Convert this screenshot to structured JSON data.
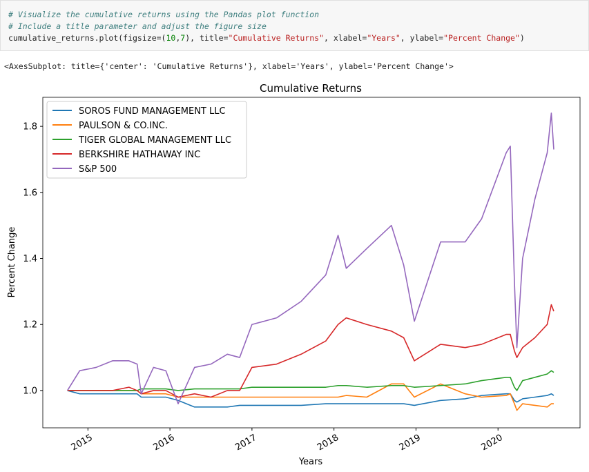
{
  "code_cell": {
    "line1": "# Visualize the cumulative returns using the Pandas plot function",
    "line2": "# Include a title parameter and adjust the figure size",
    "line3": [
      "cumulative_returns.plot(figsize=(",
      "10",
      ",",
      "7",
      "), title=",
      "\"Cumulative Returns\"",
      ", xlabel=",
      "\"Years\"",
      ", ylabel=",
      "\"Percent Change\"",
      ")"
    ]
  },
  "output_text": "<AxesSubplot: title={'center': 'Cumulative Returns'}, xlabel='Years', ylabel='Percent Change'>",
  "chart_data": {
    "type": "line",
    "title": "Cumulative Returns",
    "x_label": "Years",
    "y_label": "Percent Change",
    "x": [
      2014.75,
      2014.9,
      2015.1,
      2015.3,
      2015.5,
      2015.6,
      2015.65,
      2015.8,
      2015.95,
      2016.1,
      2016.3,
      2016.5,
      2016.7,
      2016.85,
      2017.0,
      2017.3,
      2017.6,
      2017.9,
      2018.05,
      2018.15,
      2018.4,
      2018.7,
      2018.85,
      2018.98,
      2019.3,
      2019.6,
      2019.8,
      2020.1,
      2020.15,
      2020.2,
      2020.23,
      2020.3,
      2020.45,
      2020.6,
      2020.65,
      2020.68
    ],
    "series": [
      {
        "name": "SOROS FUND MANAGEMENT LLC",
        "color": "#1f77b4",
        "values": [
          1.0,
          0.99,
          0.99,
          0.99,
          0.99,
          0.99,
          0.98,
          0.98,
          0.98,
          0.97,
          0.95,
          0.95,
          0.95,
          0.955,
          0.955,
          0.955,
          0.955,
          0.96,
          0.96,
          0.96,
          0.96,
          0.96,
          0.96,
          0.955,
          0.97,
          0.975,
          0.985,
          0.99,
          0.99,
          0.97,
          0.965,
          0.975,
          0.98,
          0.985,
          0.99,
          0.985
        ]
      },
      {
        "name": "PAULSON & CO.INC.",
        "color": "#ff7f0e",
        "values": [
          1.0,
          1.0,
          1.0,
          1.0,
          1.0,
          1.0,
          0.99,
          0.99,
          0.99,
          0.98,
          0.98,
          0.98,
          0.98,
          0.98,
          0.98,
          0.98,
          0.98,
          0.98,
          0.98,
          0.985,
          0.98,
          1.02,
          1.02,
          0.98,
          1.02,
          0.99,
          0.98,
          0.985,
          0.99,
          0.96,
          0.94,
          0.96,
          0.955,
          0.95,
          0.96,
          0.96
        ]
      },
      {
        "name": "TIGER GLOBAL MANAGEMENT LLC",
        "color": "#2ca02c",
        "values": [
          1.0,
          1.0,
          1.0,
          1.0,
          1.0,
          1.0,
          1.005,
          1.005,
          1.005,
          1.0,
          1.005,
          1.005,
          1.005,
          1.005,
          1.01,
          1.01,
          1.01,
          1.01,
          1.015,
          1.015,
          1.01,
          1.015,
          1.015,
          1.01,
          1.015,
          1.02,
          1.03,
          1.04,
          1.04,
          1.01,
          1.0,
          1.03,
          1.04,
          1.05,
          1.06,
          1.055
        ]
      },
      {
        "name": "BERKSHIRE HATHAWAY INC",
        "color": "#d62728",
        "values": [
          1.0,
          1.0,
          1.0,
          1.0,
          1.01,
          1.0,
          0.99,
          1.0,
          1.0,
          0.98,
          0.99,
          0.98,
          1.0,
          1.0,
          1.07,
          1.08,
          1.11,
          1.15,
          1.2,
          1.22,
          1.2,
          1.18,
          1.16,
          1.09,
          1.14,
          1.13,
          1.14,
          1.17,
          1.17,
          1.12,
          1.1,
          1.13,
          1.16,
          1.2,
          1.26,
          1.24
        ]
      },
      {
        "name": "S&P 500",
        "color": "#9467bd",
        "values": [
          1.0,
          1.06,
          1.07,
          1.09,
          1.09,
          1.08,
          0.99,
          1.07,
          1.06,
          0.96,
          1.07,
          1.08,
          1.11,
          1.1,
          1.2,
          1.22,
          1.27,
          1.35,
          1.47,
          1.37,
          1.43,
          1.5,
          1.38,
          1.21,
          1.45,
          1.45,
          1.52,
          1.72,
          1.74,
          1.33,
          1.13,
          1.4,
          1.58,
          1.72,
          1.84,
          1.73
        ]
      }
    ],
    "xlim": [
      2014.45,
      2021.0
    ],
    "xticks": [
      2015,
      2016,
      2017,
      2018,
      2019,
      2020
    ],
    "ylim": [
      0.887,
      1.888
    ],
    "yticks": [
      {
        "value": 1,
        "label": "1.0"
      },
      1.2,
      1.4,
      1.6,
      1.8
    ],
    "grid": false,
    "legend": "upper left"
  }
}
